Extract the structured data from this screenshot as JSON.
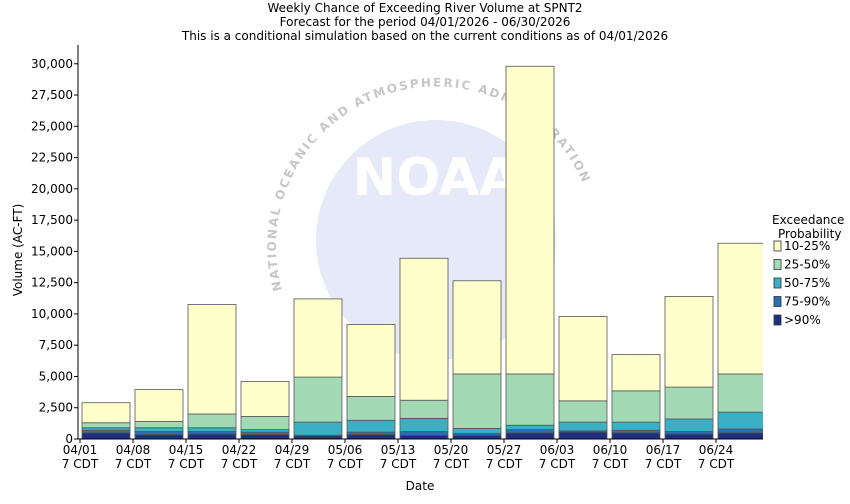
{
  "chart_data": {
    "type": "stacked_bar",
    "title": "Weekly Chance of Exceeding River Volume at SPNT2",
    "subtitle": "Forecast for the period 04/01/2026 - 06/30/2026",
    "note": "This is a conditional simulation based on the current conditions as of 04/01/2026",
    "x_label": "Date",
    "y_label": "Volume (AC-FT)",
    "watermark": "NATIONAL OCEANIC AND ATMOSPHERIC ADMINISTRATION",
    "watermark_logo": "NOAA",
    "legend_title": [
      "Exceedance",
      "Probability"
    ],
    "legend_position": "right",
    "categories": [
      [
        "04/01",
        "7 CDT"
      ],
      [
        "04/08",
        "7 CDT"
      ],
      [
        "04/15",
        "7 CDT"
      ],
      [
        "04/22",
        "7 CDT"
      ],
      [
        "04/29",
        "7 CDT"
      ],
      [
        "05/06",
        "7 CDT"
      ],
      [
        "05/13",
        "7 CDT"
      ],
      [
        "05/20",
        "7 CDT"
      ],
      [
        "05/27",
        "7 CDT"
      ],
      [
        "06/03",
        "7 CDT"
      ],
      [
        "06/10",
        "7 CDT"
      ],
      [
        "06/17",
        "7 CDT"
      ],
      [
        "06/24",
        "7 CDT"
      ]
    ],
    "series": [
      {
        "name": ">90%",
        "color": "#1f2f80",
        "values": [
          500,
          350,
          400,
          350,
          250,
          350,
          300,
          300,
          500,
          550,
          500,
          400,
          500
        ]
      },
      {
        "name": "75-90%",
        "color": "#2a6fb4",
        "values": [
          200,
          250,
          200,
          200,
          50,
          200,
          300,
          150,
          250,
          100,
          200,
          200,
          300
        ]
      },
      {
        "name": "50-75%",
        "color": "#3bb0c4",
        "values": [
          200,
          300,
          300,
          200,
          1050,
          950,
          1050,
          400,
          350,
          700,
          650,
          1000,
          1350
        ]
      },
      {
        "name": "25-50%",
        "color": "#a3dab5",
        "values": [
          400,
          500,
          1100,
          1050,
          3600,
          1900,
          1450,
          4350,
          4100,
          1700,
          2500,
          2550,
          3050
        ]
      },
      {
        "name": "10-25%",
        "color": "#ffffcc",
        "values": [
          1600,
          2550,
          8750,
          2800,
          6250,
          5750,
          11350,
          7450,
          24600,
          6750,
          2900,
          7250,
          10450
        ]
      }
    ],
    "ylim": [
      0,
      31500
    ],
    "yticks": [
      0,
      {
        "value": 2500,
        "label": "2,500"
      },
      {
        "value": 5000,
        "label": "5,000"
      },
      {
        "value": 7500,
        "label": "7,500"
      },
      {
        "value": 10000,
        "label": "10,000"
      },
      {
        "value": 12500,
        "label": "12,500"
      },
      {
        "value": 15000,
        "label": "15,000"
      },
      {
        "value": 17500,
        "label": "17,500"
      },
      {
        "value": 20000,
        "label": "20,000"
      },
      {
        "value": 22500,
        "label": "22,500"
      },
      {
        "value": 25000,
        "label": "25,000"
      },
      {
        "value": 27500,
        "label": "27,500"
      },
      {
        "value": 30000,
        "label": "30,000"
      }
    ],
    "grid": false
  }
}
